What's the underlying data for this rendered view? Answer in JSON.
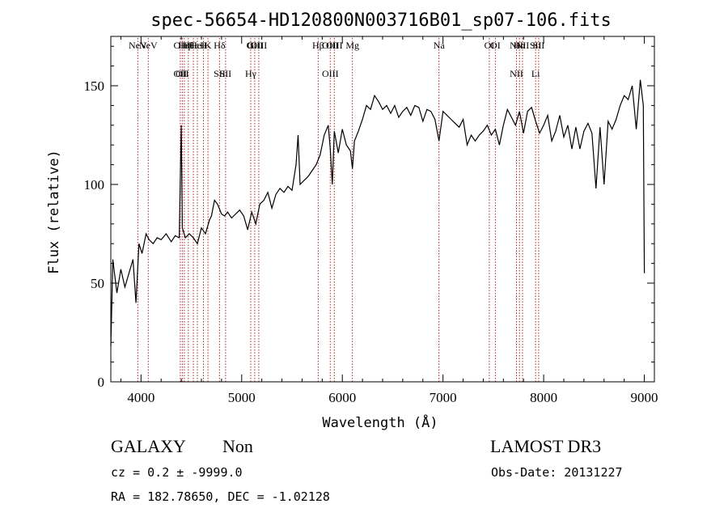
{
  "chart_data": {
    "type": "line",
    "title": "spec-56654-HD120800N003716B01_sp07-106.fits",
    "xlabel": "Wavelength (Å)",
    "ylabel": "Flux (relative)",
    "xlim": [
      3700,
      9100
    ],
    "ylim": [
      0,
      175
    ],
    "xticks": [
      4000,
      5000,
      6000,
      7000,
      8000,
      9000
    ],
    "yticks": [
      0,
      50,
      100,
      150
    ],
    "grid": false,
    "line_color": "#000000",
    "marker_color": "#b22222",
    "series": [
      {
        "x": [
          3700,
          3720,
          3760,
          3800,
          3840,
          3880,
          3920,
          3950,
          3980,
          4010,
          4050,
          4080,
          4120,
          4160,
          4200,
          4250,
          4300,
          4340,
          4380,
          4400,
          4410,
          4440,
          4480,
          4520,
          4560,
          4600,
          4640,
          4680,
          4700,
          4730,
          4760,
          4800,
          4830,
          4860,
          4900,
          4940,
          4980,
          5020,
          5060,
          5100,
          5140,
          5180,
          5220,
          5260,
          5300,
          5340,
          5380,
          5420,
          5460,
          5500,
          5540,
          5560,
          5580,
          5620,
          5660,
          5700,
          5740,
          5780,
          5820,
          5860,
          5880,
          5900,
          5920,
          5960,
          6000,
          6040,
          6080,
          6100,
          6120,
          6160,
          6200,
          6240,
          6280,
          6320,
          6360,
          6400,
          6440,
          6480,
          6520,
          6560,
          6600,
          6640,
          6680,
          6720,
          6760,
          6800,
          6840,
          6880,
          6920,
          6960,
          7000,
          7040,
          7080,
          7120,
          7160,
          7200,
          7240,
          7280,
          7320,
          7360,
          7400,
          7440,
          7480,
          7520,
          7560,
          7600,
          7640,
          7680,
          7720,
          7760,
          7800,
          7840,
          7880,
          7920,
          7960,
          8000,
          8040,
          8080,
          8120,
          8160,
          8200,
          8240,
          8280,
          8320,
          8360,
          8400,
          8440,
          8480,
          8520,
          8560,
          8600,
          8640,
          8680,
          8720,
          8760,
          8800,
          8840,
          8880,
          8920,
          8960,
          8990,
          9000
        ],
        "y": [
          18,
          62,
          45,
          57,
          48,
          55,
          62,
          40,
          70,
          65,
          75,
          72,
          70,
          73,
          72,
          75,
          71,
          74,
          73,
          130,
          78,
          73,
          75,
          73,
          70,
          78,
          75,
          82,
          84,
          92,
          90,
          85,
          84,
          86,
          83,
          85,
          87,
          84,
          77,
          86,
          80,
          90,
          92,
          96,
          88,
          95,
          98,
          96,
          99,
          97,
          110,
          125,
          100,
          102,
          104,
          107,
          110,
          115,
          125,
          130,
          118,
          100,
          127,
          116,
          128,
          120,
          117,
          108,
          122,
          127,
          133,
          140,
          138,
          145,
          142,
          138,
          140,
          136,
          140,
          134,
          137,
          139,
          135,
          140,
          139,
          132,
          138,
          137,
          133,
          122,
          137,
          135,
          133,
          131,
          129,
          133,
          120,
          125,
          122,
          125,
          127,
          130,
          125,
          128,
          120,
          130,
          138,
          134,
          130,
          137,
          126,
          137,
          139,
          132,
          126,
          130,
          135,
          122,
          127,
          135,
          124,
          130,
          118,
          129,
          118,
          127,
          131,
          126,
          98,
          129,
          100,
          132,
          128,
          133,
          140,
          145,
          143,
          150,
          128,
          153,
          140,
          55
        ]
      }
    ],
    "line_markers": [
      {
        "x": 3968,
        "top": [
          "NeV"
        ],
        "bottom": []
      },
      {
        "x": 4072,
        "top": [
          "NeV"
        ],
        "bottom": []
      },
      {
        "x": 4390,
        "top": [
          "OII"
        ],
        "bottom": [
          "OII"
        ]
      },
      {
        "x": 4410,
        "top": [],
        "bottom": [
          "OII"
        ]
      },
      {
        "x": 4430,
        "top": [
          "Hη"
        ],
        "bottom": []
      },
      {
        "x": 4470,
        "top": [
          "Hθ"
        ],
        "bottom": []
      },
      {
        "x": 4520,
        "top": [
          "Hε"
        ],
        "bottom": []
      },
      {
        "x": 4560,
        "top": [
          "HeI"
        ],
        "bottom": []
      },
      {
        "x": 4620,
        "top": [
          "H"
        ],
        "bottom": []
      },
      {
        "x": 4665,
        "top": [
          "K"
        ],
        "bottom": []
      },
      {
        "x": 4780,
        "top": [
          "Hδ"
        ],
        "bottom": [
          "SII"
        ]
      },
      {
        "x": 4840,
        "top": [],
        "bottom": [
          "SII"
        ]
      },
      {
        "x": 5090,
        "top": [
          "G"
        ],
        "bottom": [
          "Hγ"
        ]
      },
      {
        "x": 5130,
        "top": [
          "OIII"
        ],
        "bottom": []
      },
      {
        "x": 5170,
        "top": [
          "OIII"
        ],
        "bottom": []
      },
      {
        "x": 5760,
        "top": [
          "Hβ"
        ],
        "bottom": []
      },
      {
        "x": 5880,
        "top": [
          "OIII"
        ],
        "bottom": [
          "OIII"
        ]
      },
      {
        "x": 5920,
        "top": [
          "OIII"
        ],
        "bottom": []
      },
      {
        "x": 6100,
        "top": [
          "Mg"
        ],
        "bottom": []
      },
      {
        "x": 6960,
        "top": [
          "Na"
        ],
        "bottom": []
      },
      {
        "x": 7460,
        "top": [
          "OI"
        ],
        "bottom": []
      },
      {
        "x": 7520,
        "top": [
          "OI"
        ],
        "bottom": []
      },
      {
        "x": 7730,
        "top": [
          "NII"
        ],
        "bottom": [
          "NII"
        ]
      },
      {
        "x": 7760,
        "top": [
          "Hα"
        ],
        "bottom": []
      },
      {
        "x": 7790,
        "top": [
          "NII"
        ],
        "bottom": []
      },
      {
        "x": 7920,
        "top": [
          "SII"
        ],
        "bottom": [
          "Li"
        ]
      },
      {
        "x": 7950,
        "top": [
          "SII"
        ],
        "bottom": []
      }
    ]
  },
  "info": {
    "class_label": "GALAXY",
    "subclass_label": "Non",
    "survey_label": "LAMOST DR3",
    "cz_line": "cz = 0.2 ± -9999.0",
    "obs_date_line": "Obs-Date: 20131227",
    "coords_line": "RA = 182.78650, DEC =  -1.02128"
  }
}
